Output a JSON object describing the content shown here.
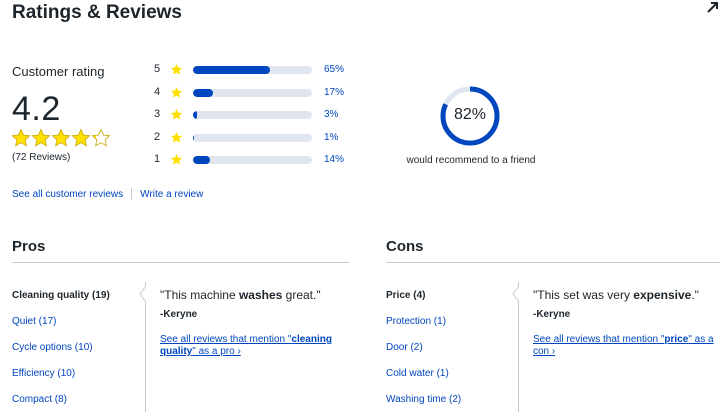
{
  "header": {
    "title": "Ratings & Reviews",
    "corner_icon": "expand-arrow-icon"
  },
  "summary": {
    "label": "Customer rating",
    "average": "4.2",
    "stars_value": 4.2,
    "stars_max": 5,
    "review_count": "(72 Reviews)",
    "star_color": "#ffe000"
  },
  "distribution": [
    {
      "stars": "5",
      "percent_label": "65%",
      "fraction": 0.65
    },
    {
      "stars": "4",
      "percent_label": "17%",
      "fraction": 0.17
    },
    {
      "stars": "3",
      "percent_label": "3%",
      "fraction": 0.03
    },
    {
      "stars": "2",
      "percent_label": "1%",
      "fraction": 0.01
    },
    {
      "stars": "1",
      "percent_label": "14%",
      "fraction": 0.14
    }
  ],
  "recommend": {
    "percent_label": "82%",
    "fraction": 0.82,
    "caption": "would recommend to a friend"
  },
  "links": {
    "see_all": "See all customer reviews",
    "write": "Write a review"
  },
  "pros": {
    "title": "Pros",
    "items": [
      "Cleaning quality (19)",
      "Quiet (17)",
      "Cycle options (10)",
      "Efficiency (10)",
      "Compact (8)"
    ],
    "active_index": 0,
    "quote_prefix": "\"This machine ",
    "quote_bold": "washes",
    "quote_suffix": " great.\"",
    "author": "-Keryne",
    "see_prefix": "See all reviews that mention \"",
    "see_keyword": "cleaning quality",
    "see_suffix": "\" as a pro ›"
  },
  "cons": {
    "title": "Cons",
    "items": [
      "Price (4)",
      "Protection (1)",
      "Door (2)",
      "Cold water (1)",
      "Washing time (2)"
    ],
    "active_index": 0,
    "quote_prefix": "\"This set was very ",
    "quote_bold": "expensive",
    "quote_suffix": ".\"",
    "author": "-Keryne",
    "see_prefix": "See all reviews that mention \"",
    "see_keyword": "price",
    "see_suffix": "\" as a con ›"
  },
  "colors": {
    "accent": "#0046be",
    "track": "#e0e6ef",
    "text": "#1d252c",
    "rule": "#c5cbd5"
  }
}
